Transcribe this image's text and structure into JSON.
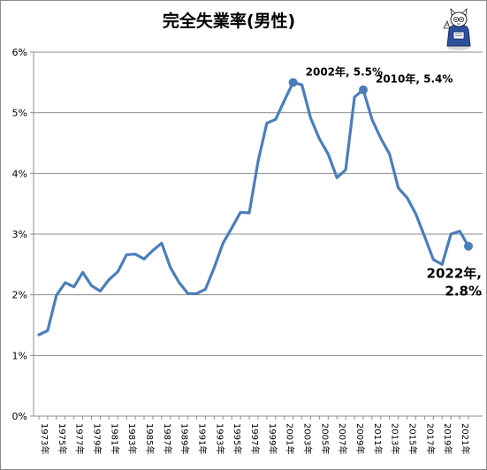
{
  "chart_data": {
    "type": "line",
    "title": "完全失業率(男性)",
    "ylim": [
      0,
      6
    ],
    "y_ticks": [
      "0%",
      "1%",
      "2%",
      "3%",
      "4%",
      "5%",
      "6%"
    ],
    "grid": true,
    "legend": "none",
    "x_tick_labels": [
      "1973年",
      "1975年",
      "1977年",
      "1979年",
      "1981年",
      "1983年",
      "1985年",
      "1987年",
      "1989年",
      "1991年",
      "1993年",
      "1995年",
      "1997年",
      "1999年",
      "2001年",
      "2003年",
      "2005年",
      "2007年",
      "2009年",
      "2011年",
      "2013年",
      "2015年",
      "2017年",
      "2019年",
      "2021年"
    ],
    "x": [
      1973,
      1974,
      1975,
      1976,
      1977,
      1978,
      1979,
      1980,
      1981,
      1982,
      1983,
      1984,
      1985,
      1986,
      1987,
      1988,
      1989,
      1990,
      1991,
      1992,
      1993,
      1994,
      1995,
      1996,
      1997,
      1998,
      1999,
      2000,
      2001,
      2002,
      2003,
      2004,
      2005,
      2006,
      2007,
      2008,
      2009,
      2010,
      2011,
      2012,
      2013,
      2014,
      2015,
      2016,
      2017,
      2018,
      2019,
      2020,
      2021,
      2022
    ],
    "series": [
      {
        "values": [
          1.34,
          1.41,
          1.99,
          2.2,
          2.13,
          2.37,
          2.15,
          2.06,
          2.25,
          2.38,
          2.66,
          2.67,
          2.59,
          2.73,
          2.85,
          2.45,
          2.2,
          2.02,
          2.02,
          2.09,
          2.45,
          2.85,
          3.1,
          3.36,
          3.35,
          4.2,
          4.83,
          4.89,
          5.2,
          5.5,
          5.46,
          4.91,
          4.57,
          4.32,
          3.93,
          4.06,
          5.26,
          5.38,
          4.89,
          4.58,
          4.32,
          3.76,
          3.6,
          3.33,
          2.96,
          2.58,
          2.5,
          3.0,
          3.05,
          2.8
        ],
        "color": "#4a7ebb"
      }
    ],
    "annotations": [
      {
        "year": 2002,
        "text": "2002年, 5.5%"
      },
      {
        "year": 2010,
        "text": "2010年, 5.4%"
      },
      {
        "year": 2022,
        "lines": [
          "2022年,",
          "2.8%"
        ]
      }
    ]
  }
}
